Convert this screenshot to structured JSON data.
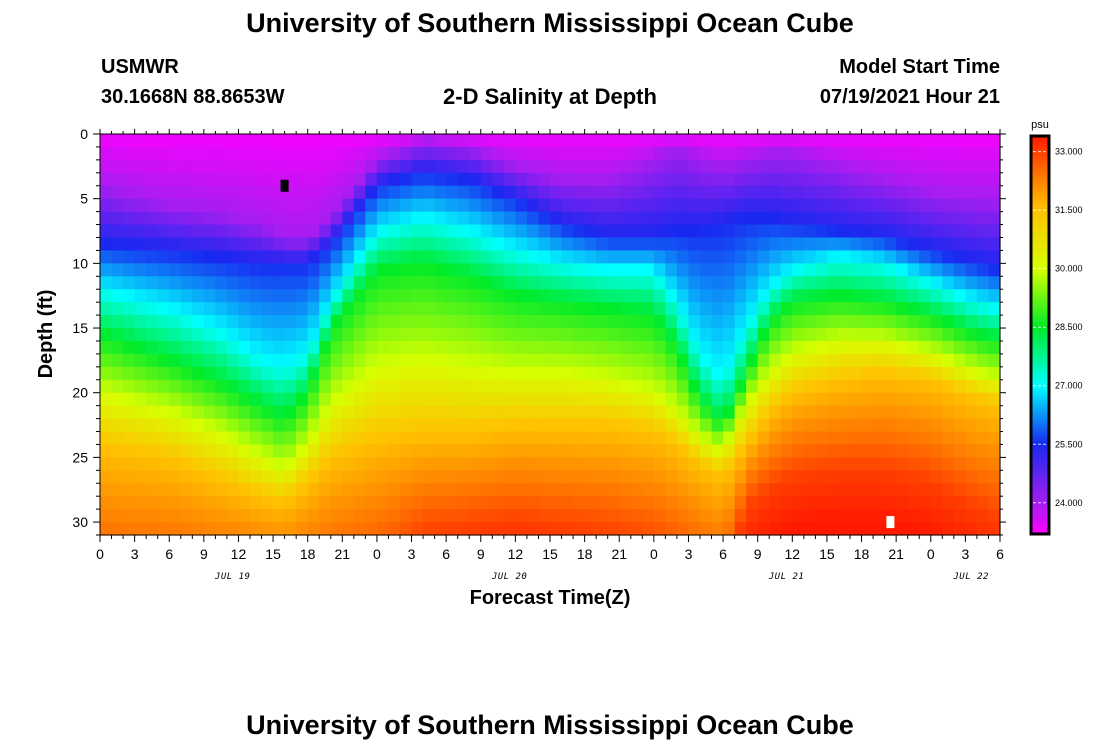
{
  "page": {
    "title_top": "University of Southern Mississippi Ocean Cube",
    "title_bottom": "University of Southern Mississippi Ocean Cube",
    "station": "USMWR",
    "coords": "30.1668N  88.8653W",
    "plot_title": "2-D Salinity at Depth",
    "start_label": "Model Start Time",
    "start_value": "07/19/2021 Hour 21"
  },
  "chart_data": {
    "type": "heatmap",
    "title": "2-D Salinity at Depth",
    "xlabel": "Forecast Time(Z)",
    "ylabel": "Depth (ft)",
    "x_ticks": [
      "0",
      "3",
      "6",
      "9",
      "12",
      "15",
      "18",
      "21",
      "0",
      "3",
      "6",
      "9",
      "12",
      "15",
      "18",
      "21",
      "0",
      "3",
      "6",
      "9",
      "12",
      "15",
      "18",
      "21",
      "0",
      "3",
      "6"
    ],
    "x_start_hour": 0,
    "x_end_hour": 78,
    "day_labels": [
      {
        "text": "JUL 19",
        "hour": 11.5
      },
      {
        "text": "JUL 20",
        "hour": 35.5
      },
      {
        "text": "JUL 21",
        "hour": 59.5
      },
      {
        "text": "JUL 22",
        "hour": 75.5
      }
    ],
    "y_ticks": [
      "0",
      "5",
      "10",
      "15",
      "20",
      "25",
      "30"
    ],
    "ylim": [
      0,
      31
    ],
    "colorbar": {
      "unit": "psu",
      "range": [
        23.2,
        33.4
      ],
      "ticks": [
        "33.000",
        "31.500",
        "30.000",
        "28.500",
        "27.000",
        "25.500",
        "24.000"
      ],
      "tick_values": [
        33.0,
        31.5,
        30.0,
        28.5,
        27.0,
        25.5,
        24.0
      ]
    },
    "isohaline_depths": {
      "hours": [
        0,
        6,
        10,
        14,
        16,
        18,
        20,
        24,
        28,
        32,
        36,
        40,
        44,
        48,
        50,
        52,
        54,
        56,
        58,
        60,
        64,
        68,
        72,
        76,
        78
      ],
      "s24": [
        4.0,
        5.5,
        6.0,
        7.0,
        8.0,
        8.0,
        6.5,
        2.0,
        0.5,
        1.0,
        2.5,
        3.5,
        3.5,
        2.0,
        1.0,
        2.0,
        2.5,
        2.0,
        1.5,
        1.5,
        2.5,
        3.5,
        4.5,
        5.0,
        5.0
      ],
      "s25_5": [
        8.5,
        9.0,
        9.5,
        10.0,
        10.0,
        10.0,
        8.5,
        4.0,
        3.0,
        3.5,
        5.0,
        7.0,
        8.0,
        8.0,
        7.5,
        7.5,
        7.0,
        6.5,
        6.5,
        7.0,
        7.5,
        8.0,
        9.0,
        10.0,
        10.5
      ],
      "s27": [
        12.0,
        13.5,
        15.0,
        17.5,
        18.0,
        17.0,
        13.0,
        7.5,
        6.5,
        7.5,
        9.0,
        10.0,
        10.5,
        10.5,
        13.0,
        17.0,
        19.0,
        15.0,
        12.0,
        10.5,
        9.5,
        10.0,
        11.5,
        13.0,
        13.5
      ],
      "s28_5": [
        15.5,
        17.5,
        19.0,
        21.0,
        22.0,
        20.0,
        15.0,
        10.5,
        10.0,
        11.0,
        12.5,
        13.0,
        13.5,
        14.0,
        16.5,
        20.5,
        22.5,
        18.5,
        14.5,
        13.0,
        12.5,
        13.0,
        14.0,
        15.5,
        16.0
      ],
      "s30": [
        20.0,
        21.5,
        23.0,
        25.0,
        26.0,
        24.0,
        21.0,
        18.0,
        17.5,
        18.0,
        18.5,
        18.5,
        19.0,
        20.0,
        21.5,
        23.5,
        24.5,
        21.0,
        18.5,
        17.0,
        16.0,
        16.0,
        17.0,
        18.5,
        19.0
      ],
      "s31_5": [
        24.0,
        25.0,
        26.5,
        28.0,
        28.5,
        27.0,
        25.0,
        23.5,
        23.0,
        23.0,
        22.5,
        22.5,
        22.5,
        23.0,
        24.0,
        25.5,
        26.5,
        24.0,
        21.5,
        20.0,
        19.0,
        18.5,
        19.0,
        20.5,
        21.0
      ],
      "s33": [
        35.0,
        35.0,
        35.0,
        35.0,
        35.0,
        35.0,
        35.0,
        34.0,
        31.0,
        30.5,
        30.0,
        30.5,
        31.0,
        32.0,
        33.0,
        34.0,
        35.0,
        29.0,
        27.5,
        26.5,
        26.0,
        26.0,
        27.0,
        29.0,
        30.0
      ]
    },
    "surface_salinity": 23.3,
    "markers": [
      {
        "hour": 16,
        "depth": 4.0,
        "color": "#000000"
      },
      {
        "hour": 68.5,
        "depth": 30.0,
        "color": "#ffffff"
      }
    ],
    "grid": false
  }
}
